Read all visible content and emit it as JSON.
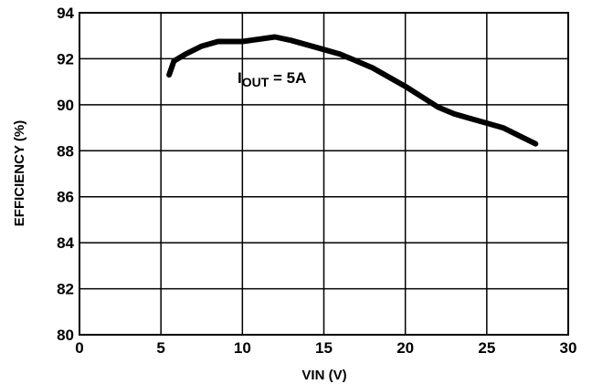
{
  "chart_data": {
    "type": "line",
    "title": "",
    "xlabel": "VIN (V)",
    "ylabel": "EFFICIENCY (%)",
    "xlim": [
      0,
      30
    ],
    "ylim": [
      80,
      94
    ],
    "x_ticks": [
      "0",
      "5",
      "10",
      "15",
      "20",
      "25",
      "30"
    ],
    "y_ticks": [
      "80",
      "82",
      "84",
      "86",
      "88",
      "90",
      "92",
      "94"
    ],
    "grid": true,
    "legend": "none",
    "annotation": {
      "main": "I",
      "sub": "OUT",
      "rest": " = 5A"
    },
    "series": [
      {
        "color": "#000000",
        "x": [
          5.5,
          5.8,
          6.5,
          7.5,
          8.5,
          10,
          12,
          13,
          14,
          15,
          16,
          17,
          18,
          19,
          20,
          21,
          22,
          23,
          24,
          25,
          26,
          27,
          28
        ],
        "y": [
          91.3,
          91.9,
          92.2,
          92.55,
          92.75,
          92.75,
          92.95,
          92.8,
          92.6,
          92.4,
          92.2,
          91.9,
          91.6,
          91.2,
          90.8,
          90.35,
          89.9,
          89.6,
          89.4,
          89.2,
          89.0,
          88.65,
          88.3
        ]
      }
    ]
  }
}
